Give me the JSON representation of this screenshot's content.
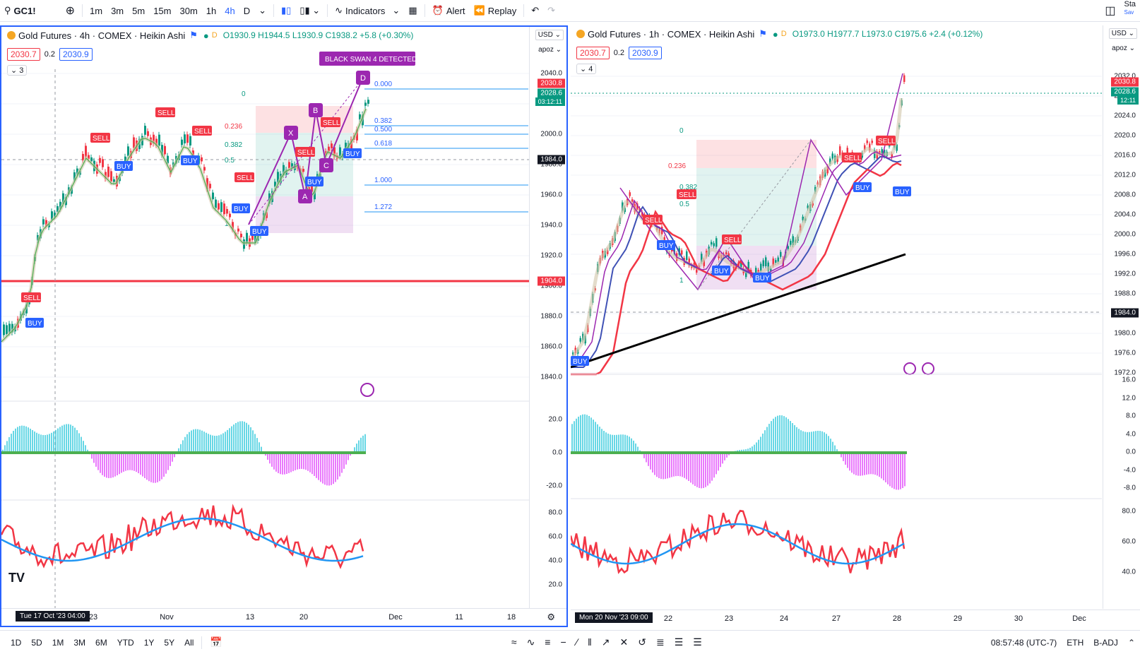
{
  "topbar": {
    "symbol": "GC1!",
    "intervals": [
      "1m",
      "3m",
      "5m",
      "15m",
      "30m",
      "1h",
      "4h",
      "D"
    ],
    "active_interval": "4h",
    "indicators_label": "Indicators",
    "alert_label": "Alert",
    "replay_label": "Replay",
    "right_label": "Sta",
    "right_sub": "Sav"
  },
  "left": {
    "title": "Gold Futures · 4h · COMEX · Heikin Ashi",
    "ohlc": {
      "o": "O1930.9",
      "h": "H1944.5",
      "l": "L1930.9",
      "c": "C1938.2",
      "chg": "+5.8 (+0.30%)"
    },
    "price_red": "2030.7",
    "spread": "0.2",
    "price_blue": "2030.9",
    "collapse": "3",
    "currency": "USD",
    "scale": "apoz",
    "axis": [
      "2040.0",
      "2020.0",
      "2000.0",
      "1980.0",
      "1960.0",
      "1940.0",
      "1920.0",
      "1900.0",
      "1880.0",
      "1860.0",
      "1840.0"
    ],
    "price_tags": {
      "last": "2030.8",
      "close": "2028.6",
      "timer": "03:12:11",
      "crosshair": "1984.0",
      "line": "1904.0"
    },
    "osc_axis": [
      "20.0",
      "0.0",
      "-20.0"
    ],
    "rsi_axis": [
      "80.0",
      "60.0",
      "40.0",
      "20.0"
    ],
    "time_labels": [
      "23",
      "Nov",
      "13",
      "20",
      "Dec",
      "11",
      "18"
    ],
    "time_current": "Tue 17 Oct '23  04:00",
    "pattern_banner": "BLACK SWAN 4 DETECTED",
    "points": [
      "X",
      "A",
      "B",
      "C",
      "D"
    ],
    "fib_levels": [
      "0.000",
      "0.382",
      "0.500",
      "0.618",
      "1.000",
      "1.272"
    ],
    "box_levels": [
      "0",
      "0.236",
      "0.382",
      "0.5",
      "1"
    ],
    "signals_sell": [
      "SELL",
      "SELL",
      "SELL",
      "SELL",
      "SELL",
      "SELL",
      "SELL"
    ],
    "signals_buy": [
      "BUY",
      "BUY",
      "BUY",
      "BUY",
      "BUY",
      "BUY",
      "BUY"
    ]
  },
  "right": {
    "title": "Gold Futures · 1h · COMEX · Heikin Ashi",
    "ohlc": {
      "o": "O1973.0",
      "h": "H1977.7",
      "l": "L1973.0",
      "c": "C1975.6",
      "chg": "+2.4 (+0.12%)"
    },
    "price_red": "2030.7",
    "spread": "0.2",
    "price_blue": "2030.9",
    "collapse": "4",
    "currency": "USD",
    "scale": "apoz",
    "axis": [
      "2032.0",
      "2028.0",
      "2024.0",
      "2020.0",
      "2016.0",
      "2012.0",
      "2008.0",
      "2004.0",
      "2000.0",
      "1996.0",
      "1992.0",
      "1988.0",
      "1984.0",
      "1980.0",
      "1976.0",
      "1972.0"
    ],
    "price_tags": {
      "last": "2030.8",
      "close": "2028.6",
      "timer": "12:11",
      "crosshair": "1984.0"
    },
    "osc_axis": [
      "16.0",
      "12.0",
      "8.0",
      "4.0",
      "0.0",
      "-4.0",
      "-8.0"
    ],
    "rsi_axis": [
      "80.0",
      "60.0",
      "40.0"
    ],
    "time_labels": [
      "22",
      "23",
      "24",
      "27",
      "28",
      "29",
      "30",
      "Dec"
    ],
    "time_current": "Mon 20 Nov '23  09:00",
    "box_levels": [
      "0",
      "0.236",
      "0.382",
      "0.5",
      "1"
    ]
  },
  "bottombar": {
    "ranges": [
      "1D",
      "5D",
      "1M",
      "3M",
      "6M",
      "YTD",
      "1Y",
      "5Y",
      "All"
    ],
    "clock": "08:57:48 (UTC-7)",
    "session": "ETH",
    "adj": "B-ADJ"
  },
  "colors": {
    "accent": "#2962ff",
    "sell": "#f23645",
    "buy": "#2962ff",
    "up": "#089981",
    "pattern": "#9c27b0"
  }
}
